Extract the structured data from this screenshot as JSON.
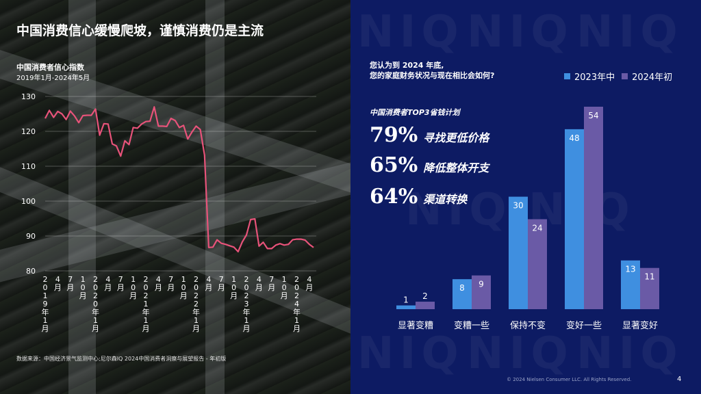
{
  "title": "中国消费信心缓慢爬坡，谨慎消费仍是主流",
  "watermark": "NIQ",
  "left_chart": {
    "title": "中国消费者信心指数",
    "subtitle": "2019年1月-2024年5月",
    "source": "数据来源：中国经济景气监测中心;尼尔森IQ 2024中国消费者洞察与展望报告 - 年初版"
  },
  "right": {
    "question_line1": "您认为到 2024 年底,",
    "question_line2": "您的家庭财务状况与现在相比会如何?",
    "top3_title": "中国消费者TOP3省钱计划",
    "stats": [
      {
        "pct": "79%",
        "label": "寻找更低价格"
      },
      {
        "pct": "65%",
        "label": "降低整体开支"
      },
      {
        "pct": "64%",
        "label": "渠道转换"
      }
    ],
    "footer": "© 2024 Nielsen Consumer LLC. All Rights Reserved.",
    "page": "4"
  },
  "colors": {
    "line": "#e8537a",
    "s2023": "#3f8fe0",
    "s2024": "#6a5aa6",
    "bg_right": "#0d1b63"
  },
  "chart_data": [
    {
      "type": "line",
      "title": "中国消费者信心指数",
      "subtitle": "2019年1月-2024年5月",
      "ylim": [
        80,
        130
      ],
      "yticks": [
        80,
        90,
        100,
        110,
        120,
        130
      ],
      "grid": true,
      "xtick_labels": [
        "2019年1月",
        "4月",
        "7月",
        "10月",
        "2020年1月",
        "4月",
        "7月",
        "10月",
        "2021年1月",
        "4月",
        "7月",
        "10月",
        "2022年1月",
        "4月",
        "7月",
        "10月",
        "2023年1月",
        "4月",
        "7月",
        "10月",
        "2024年1月",
        "4月"
      ],
      "series": [
        {
          "values": [
            123.7,
            126,
            124,
            125.7,
            125,
            123.4,
            125.8,
            124.4,
            122.5,
            124.5,
            124.6,
            124.6,
            126.4,
            118.9,
            122.2,
            122.1,
            116.4,
            115.8,
            112.9,
            117.3,
            116.2,
            121.1,
            120.9,
            122.1,
            122.8,
            122.9,
            127,
            121.5,
            121.5,
            121.4,
            123.7,
            123.1,
            121.1,
            121.7,
            117.8,
            119.8,
            121.5,
            120.5,
            113.2,
            86.7,
            86.8,
            88.9,
            87.9,
            87.6,
            87.2,
            86.8,
            85.5,
            88.3,
            90.3,
            94.7,
            94.9,
            87.1,
            88.2,
            86.4,
            86.4,
            87.4,
            87.8,
            87.4,
            87.6,
            88.9,
            89.1,
            89.1,
            88.8,
            87.6,
            86.7
          ]
        }
      ]
    },
    {
      "type": "bar",
      "title": "",
      "categories": [
        "显著变糟",
        "变糟一些",
        "保持不变",
        "变好一些",
        "显著变好"
      ],
      "series": [
        {
          "name": "2023年中",
          "values": [
            1,
            8,
            30,
            48,
            13
          ]
        },
        {
          "name": "2024年初",
          "values": [
            2,
            9,
            24,
            54,
            11
          ]
        }
      ],
      "ylim": [
        0,
        54
      ],
      "legend": "top-right",
      "grid": false
    }
  ]
}
